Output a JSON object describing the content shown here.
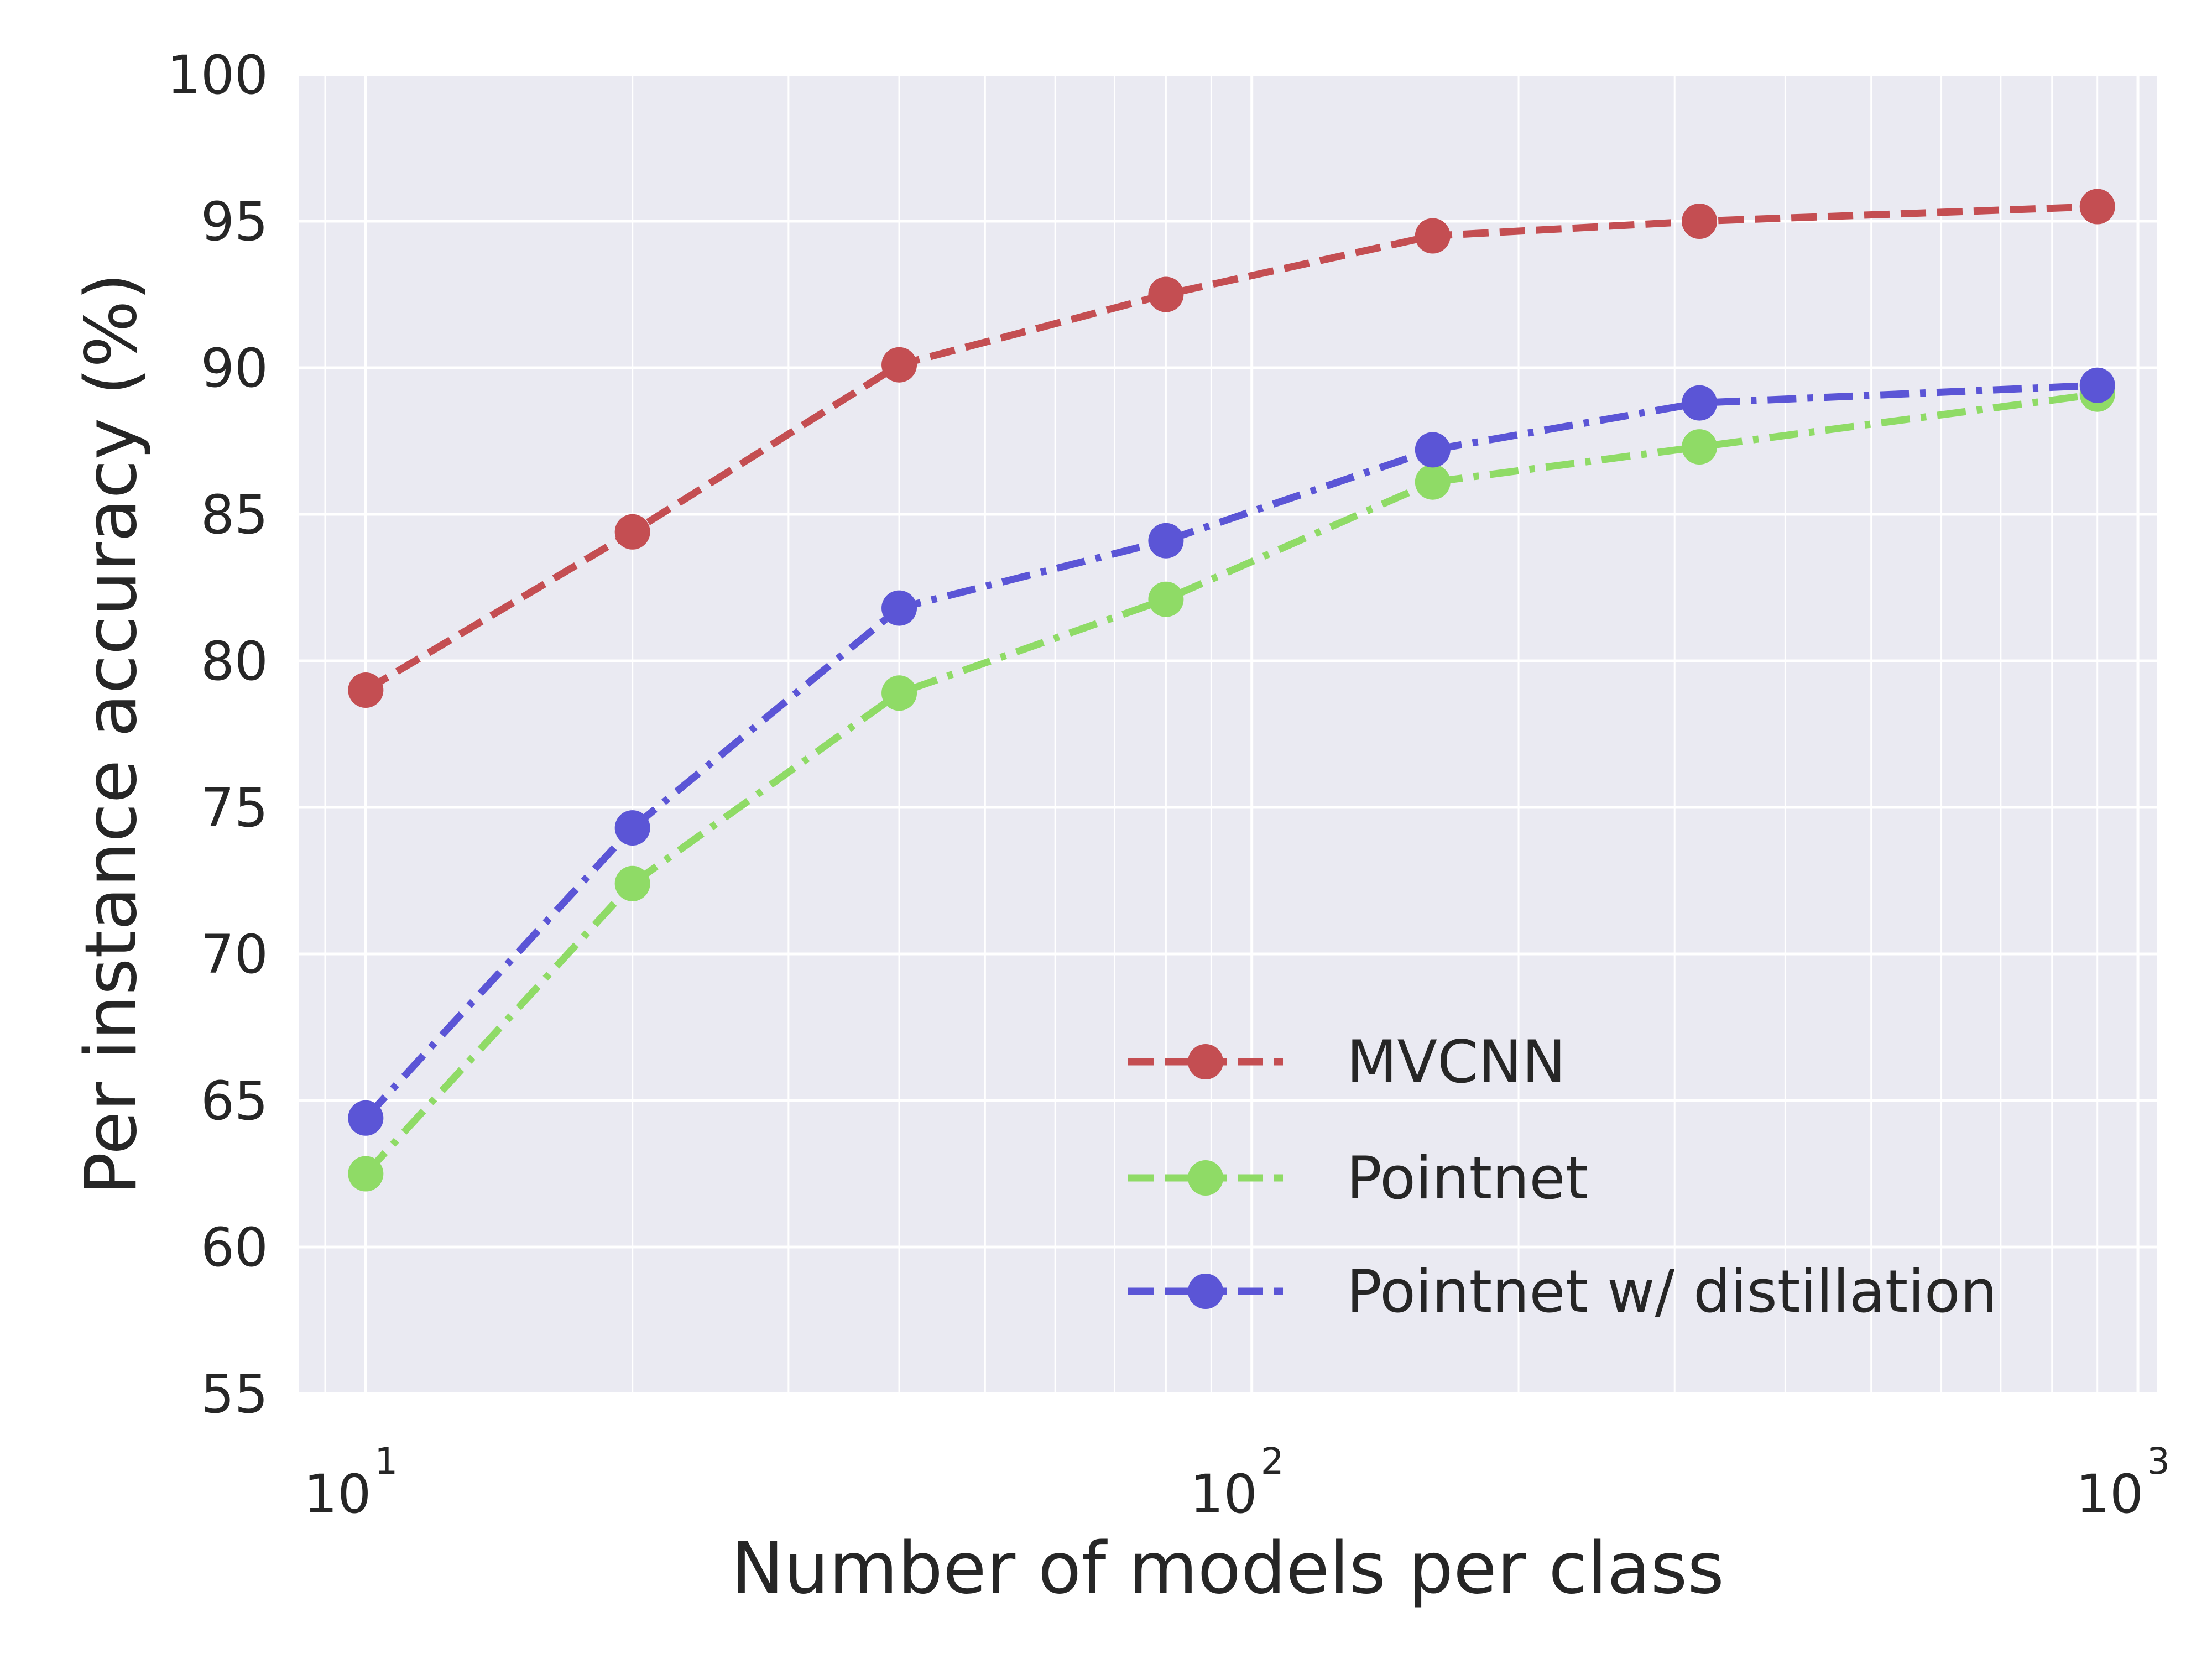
{
  "chart_data": {
    "type": "line",
    "title": "",
    "xlabel": "Number of models per class",
    "ylabel": "Per instance accuracy (%)",
    "x_scale": "log",
    "xlim": [
      8.4,
      1050
    ],
    "ylim": [
      55,
      100
    ],
    "grid": true,
    "legend_position": "lower-right",
    "x_ticks": [
      {
        "value": 10,
        "base": "10",
        "exp": "1"
      },
      {
        "value": 100,
        "base": "10",
        "exp": "2"
      },
      {
        "value": 1000,
        "base": "10",
        "exp": "3"
      }
    ],
    "y_ticks": [
      "55",
      "60",
      "65",
      "70",
      "75",
      "80",
      "85",
      "90",
      "95",
      "100"
    ],
    "x": [
      10,
      20,
      40,
      80,
      160,
      320,
      900
    ],
    "series": [
      {
        "name": "MVCNN",
        "color": "#c44e52",
        "dash": "dashed",
        "values": [
          79.0,
          84.4,
          90.1,
          92.5,
          94.5,
          95.0,
          95.5
        ]
      },
      {
        "name": "Pointnet",
        "color": "#8fdb66",
        "dash": "dashdot",
        "values": [
          62.5,
          72.4,
          78.9,
          82.1,
          86.1,
          87.3,
          89.1
        ]
      },
      {
        "name": "Pointnet w/ distillation",
        "color": "#5b55d6",
        "dash": "dashdot",
        "values": [
          64.4,
          74.3,
          81.8,
          84.1,
          87.2,
          88.8,
          89.4
        ]
      }
    ]
  }
}
